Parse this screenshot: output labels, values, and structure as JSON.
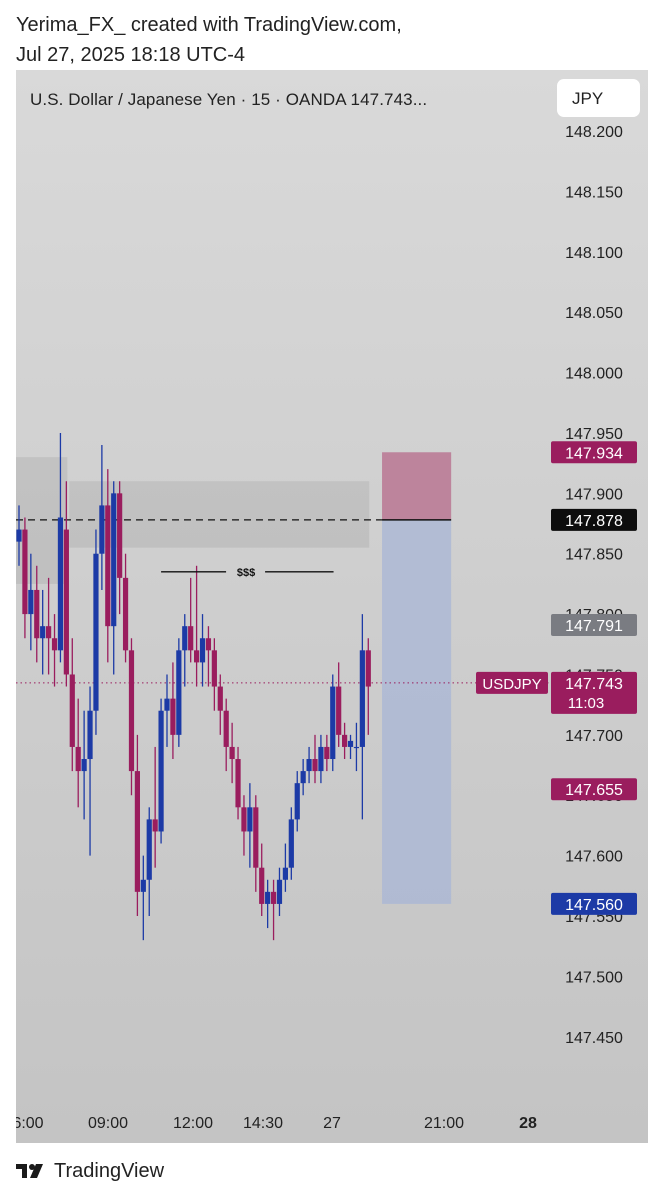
{
  "caption": {
    "line1": "Yerima_FX_ created with TradingView.com,",
    "line2": "Jul 27, 2025 18:18 UTC-4"
  },
  "header": {
    "symbol_title": "U.S. Dollar / Japanese Yen · 15 · OANDA  147.743...",
    "currency_button": "JPY"
  },
  "footer": {
    "brand": "TradingView",
    "logo_icon": "tradingview-logo-icon"
  },
  "colors": {
    "bull": "#1c3aa6",
    "bear": "#9a1d5e",
    "target_zone": "#a8b5d6",
    "stop_zone": "#b8708f",
    "zone_gray": "#9a9a9a"
  },
  "chart_data": {
    "type": "candlestick",
    "title": "U.S. Dollar / Japanese Yen · 15 · OANDA",
    "ylim": [
      147.42,
      148.205
    ],
    "y_ticks": [
      "148.200",
      "148.150",
      "148.100",
      "148.050",
      "148.000",
      "147.950",
      "147.900",
      "147.850",
      "147.800",
      "147.750",
      "147.700",
      "147.650",
      "147.600",
      "147.550",
      "147.500",
      "147.450"
    ],
    "x_ticks": [
      "6:00",
      "09:00",
      "12:00",
      "14:30",
      "27",
      "21:00",
      "28"
    ],
    "candles": [
      {
        "o": 147.86,
        "h": 147.89,
        "l": 147.84,
        "c": 147.87
      },
      {
        "o": 147.87,
        "h": 147.88,
        "l": 147.78,
        "c": 147.8
      },
      {
        "o": 147.8,
        "h": 147.85,
        "l": 147.77,
        "c": 147.82
      },
      {
        "o": 147.82,
        "h": 147.84,
        "l": 147.76,
        "c": 147.78
      },
      {
        "o": 147.78,
        "h": 147.82,
        "l": 147.75,
        "c": 147.79
      },
      {
        "o": 147.79,
        "h": 147.83,
        "l": 147.75,
        "c": 147.78
      },
      {
        "o": 147.78,
        "h": 147.8,
        "l": 147.74,
        "c": 147.77
      },
      {
        "o": 147.77,
        "h": 147.95,
        "l": 147.76,
        "c": 147.88
      },
      {
        "o": 147.87,
        "h": 147.91,
        "l": 147.74,
        "c": 147.75
      },
      {
        "o": 147.75,
        "h": 147.78,
        "l": 147.67,
        "c": 147.69
      },
      {
        "o": 147.69,
        "h": 147.73,
        "l": 147.64,
        "c": 147.67
      },
      {
        "o": 147.67,
        "h": 147.72,
        "l": 147.63,
        "c": 147.68
      },
      {
        "o": 147.68,
        "h": 147.74,
        "l": 147.6,
        "c": 147.72
      },
      {
        "o": 147.72,
        "h": 147.87,
        "l": 147.7,
        "c": 147.85
      },
      {
        "o": 147.85,
        "h": 147.94,
        "l": 147.82,
        "c": 147.89
      },
      {
        "o": 147.89,
        "h": 147.92,
        "l": 147.76,
        "c": 147.79
      },
      {
        "o": 147.79,
        "h": 147.91,
        "l": 147.75,
        "c": 147.9
      },
      {
        "o": 147.9,
        "h": 147.91,
        "l": 147.8,
        "c": 147.83
      },
      {
        "o": 147.83,
        "h": 147.85,
        "l": 147.76,
        "c": 147.77
      },
      {
        "o": 147.77,
        "h": 147.78,
        "l": 147.65,
        "c": 147.67
      },
      {
        "o": 147.67,
        "h": 147.7,
        "l": 147.55,
        "c": 147.57
      },
      {
        "o": 147.57,
        "h": 147.6,
        "l": 147.53,
        "c": 147.58
      },
      {
        "o": 147.58,
        "h": 147.64,
        "l": 147.55,
        "c": 147.63
      },
      {
        "o": 147.63,
        "h": 147.69,
        "l": 147.59,
        "c": 147.62
      },
      {
        "o": 147.62,
        "h": 147.73,
        "l": 147.61,
        "c": 147.72
      },
      {
        "o": 147.72,
        "h": 147.75,
        "l": 147.69,
        "c": 147.73
      },
      {
        "o": 147.73,
        "h": 147.76,
        "l": 147.68,
        "c": 147.7
      },
      {
        "o": 147.7,
        "h": 147.78,
        "l": 147.69,
        "c": 147.77
      },
      {
        "o": 147.77,
        "h": 147.8,
        "l": 147.74,
        "c": 147.79
      },
      {
        "o": 147.79,
        "h": 147.83,
        "l": 147.76,
        "c": 147.77
      },
      {
        "o": 147.77,
        "h": 147.84,
        "l": 147.74,
        "c": 147.76
      },
      {
        "o": 147.76,
        "h": 147.8,
        "l": 147.74,
        "c": 147.78
      },
      {
        "o": 147.78,
        "h": 147.79,
        "l": 147.74,
        "c": 147.77
      },
      {
        "o": 147.77,
        "h": 147.78,
        "l": 147.72,
        "c": 147.74
      },
      {
        "o": 147.74,
        "h": 147.75,
        "l": 147.7,
        "c": 147.72
      },
      {
        "o": 147.72,
        "h": 147.73,
        "l": 147.67,
        "c": 147.69
      },
      {
        "o": 147.69,
        "h": 147.71,
        "l": 147.66,
        "c": 147.68
      },
      {
        "o": 147.68,
        "h": 147.69,
        "l": 147.63,
        "c": 147.64
      },
      {
        "o": 147.64,
        "h": 147.65,
        "l": 147.6,
        "c": 147.62
      },
      {
        "o": 147.62,
        "h": 147.66,
        "l": 147.59,
        "c": 147.64
      },
      {
        "o": 147.64,
        "h": 147.65,
        "l": 147.57,
        "c": 147.59
      },
      {
        "o": 147.59,
        "h": 147.61,
        "l": 147.55,
        "c": 147.56
      },
      {
        "o": 147.56,
        "h": 147.58,
        "l": 147.54,
        "c": 147.57
      },
      {
        "o": 147.57,
        "h": 147.58,
        "l": 147.53,
        "c": 147.56
      },
      {
        "o": 147.56,
        "h": 147.59,
        "l": 147.55,
        "c": 147.58
      },
      {
        "o": 147.58,
        "h": 147.61,
        "l": 147.57,
        "c": 147.59
      },
      {
        "o": 147.59,
        "h": 147.64,
        "l": 147.58,
        "c": 147.63
      },
      {
        "o": 147.63,
        "h": 147.67,
        "l": 147.62,
        "c": 147.66
      },
      {
        "o": 147.66,
        "h": 147.68,
        "l": 147.65,
        "c": 147.67
      },
      {
        "o": 147.67,
        "h": 147.69,
        "l": 147.66,
        "c": 147.68
      },
      {
        "o": 147.68,
        "h": 147.7,
        "l": 147.66,
        "c": 147.67
      },
      {
        "o": 147.67,
        "h": 147.7,
        "l": 147.66,
        "c": 147.69
      },
      {
        "o": 147.69,
        "h": 147.7,
        "l": 147.67,
        "c": 147.68
      },
      {
        "o": 147.68,
        "h": 147.75,
        "l": 147.67,
        "c": 147.74
      },
      {
        "o": 147.74,
        "h": 147.76,
        "l": 147.69,
        "c": 147.7
      },
      {
        "o": 147.7,
        "h": 147.71,
        "l": 147.68,
        "c": 147.69
      },
      {
        "o": 147.69,
        "h": 147.7,
        "l": 147.68,
        "c": 147.695
      },
      {
        "o": 147.69,
        "h": 147.71,
        "l": 147.67,
        "c": 147.69
      },
      {
        "o": 147.69,
        "h": 147.8,
        "l": 147.63,
        "c": 147.77
      },
      {
        "o": 147.77,
        "h": 147.78,
        "l": 147.7,
        "c": 147.74
      }
    ],
    "zones": [
      {
        "name": "gray-zone-1",
        "start": 0,
        "end": 8,
        "top": 147.93,
        "bottom": 147.825
      },
      {
        "name": "gray-zone-2",
        "start": 9,
        "end": 59,
        "top": 147.91,
        "bottom": 147.855
      }
    ],
    "dashed_level": 147.878,
    "liquidity_line": {
      "start": 24,
      "end": 43,
      "price": 147.835,
      "label": "$$$"
    },
    "current_price_line": 147.743,
    "position_tool": {
      "start_index": 62,
      "end_index": 73,
      "entry": 147.878,
      "stop": 147.934,
      "target": 147.56
    },
    "price_labels": [
      {
        "value": "147.934",
        "price": 147.934,
        "color": "#9a1d5e",
        "text_color": "#ffffff"
      },
      {
        "value": "147.878",
        "price": 147.878,
        "color": "#0d0d0d",
        "text_color": "#ffffff"
      },
      {
        "value": "147.791",
        "price": 147.791,
        "color": "#7a7c82",
        "text_color": "#ffffff"
      },
      {
        "value": "147.655",
        "price": 147.655,
        "color": "#9a1d5e",
        "text_color": "#ffffff"
      },
      {
        "value": "147.560",
        "price": 147.56,
        "color": "#1c3aa6",
        "text_color": "#ffffff"
      }
    ],
    "current_label": {
      "symbol": "USDJPY",
      "value": "147.743",
      "countdown": "11:03",
      "color": "#9a1d5e"
    }
  }
}
